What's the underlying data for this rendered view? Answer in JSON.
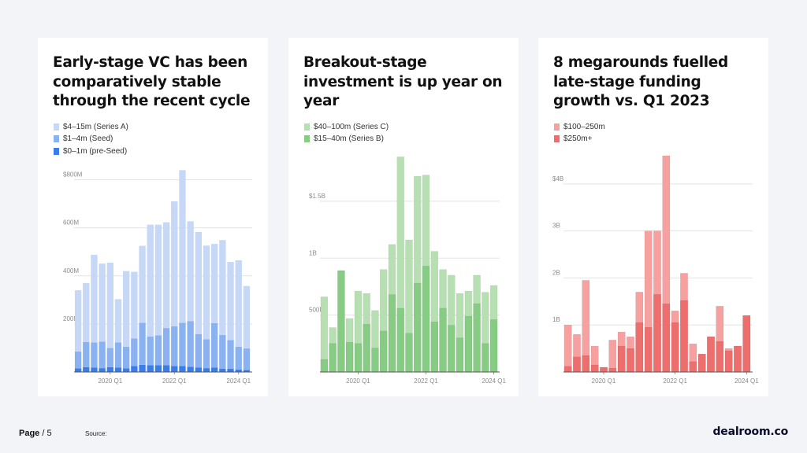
{
  "footer": {
    "page_label": "Page",
    "page_number": "/ 5",
    "source_label": "Source:",
    "logo": "dealroom.co"
  },
  "chart_data": [
    {
      "type": "bar",
      "stacked": true,
      "title": "Early-stage VC has been comparatively stable through the recent cycle",
      "x_tick_labels": [
        "2020 Q1",
        "2022 Q1",
        "2024 Q1"
      ],
      "x_tick_indices": [
        4,
        12,
        20
      ],
      "y_ticks": [
        200,
        400,
        600,
        800
      ],
      "y_tick_labels": [
        "200M",
        "400M",
        "600M",
        "$800M"
      ],
      "ylim": [
        0,
        900
      ],
      "series": [
        {
          "name": "$0–1m (pre-Seed)",
          "color": "#3b7de8",
          "values": [
            15,
            20,
            18,
            16,
            20,
            18,
            15,
            25,
            30,
            28,
            28,
            28,
            25,
            25,
            22,
            18,
            16,
            18,
            14,
            13,
            10,
            8
          ]
        },
        {
          "name": "$1–4m (Seed)",
          "color": "#8ab2f0",
          "values": [
            70,
            105,
            105,
            110,
            80,
            105,
            90,
            115,
            175,
            120,
            125,
            155,
            165,
            180,
            190,
            140,
            120,
            185,
            140,
            120,
            95,
            90
          ]
        },
        {
          "name": "$4–15m (Series A)",
          "color": "#c6d8f6",
          "values": [
            255,
            245,
            365,
            325,
            355,
            180,
            315,
            277,
            320,
            465,
            460,
            440,
            520,
            635,
            415,
            425,
            390,
            330,
            395,
            325,
            360,
            260
          ]
        }
      ]
    },
    {
      "type": "bar",
      "stacked": false,
      "overlaid": true,
      "title": "Breakout-stage investment is up year on year",
      "x_tick_labels": [
        "2020 Q1",
        "2022 Q1",
        "2024 Q1"
      ],
      "x_tick_indices": [
        4,
        12,
        20
      ],
      "y_ticks": [
        500,
        1000,
        1500
      ],
      "y_tick_labels": [
        "500M",
        "1B",
        "$1.5B"
      ],
      "ylim": [
        0,
        1900
      ],
      "series": [
        {
          "name": "$40–100m (Series C)",
          "color": "#b7e0b2",
          "values": [
            660,
            390,
            890,
            470,
            710,
            690,
            540,
            900,
            1120,
            1890,
            1160,
            1720,
            1730,
            1060,
            900,
            850,
            690,
            710,
            850,
            700,
            760
          ]
        },
        {
          "name": "$15–40m (Series B)",
          "color": "#86cc83",
          "values": [
            110,
            250,
            890,
            260,
            250,
            420,
            210,
            360,
            680,
            560,
            340,
            780,
            930,
            440,
            560,
            410,
            300,
            490,
            600,
            250,
            460
          ]
        }
      ]
    },
    {
      "type": "bar",
      "stacked": false,
      "overlaid": true,
      "title": "8 megarounds fuelled late-stage funding growth vs. Q1 2023",
      "x_tick_labels": [
        "2020 Q1",
        "2022 Q1",
        "2024 Q1"
      ],
      "x_tick_indices": [
        4,
        12,
        20
      ],
      "y_ticks": [
        1,
        2,
        3,
        4
      ],
      "y_tick_labels": [
        "1B",
        "2B",
        "3B",
        "$4B"
      ],
      "ylim": [
        0,
        4.6
      ],
      "series": [
        {
          "name": "$100–250m",
          "color": "#f6a0a0",
          "values": [
            1.0,
            0.8,
            1.95,
            0.55,
            0.1,
            0.68,
            0.85,
            0.75,
            1.7,
            3.0,
            3.0,
            4.6,
            1.3,
            2.1,
            0.6,
            0.38,
            0.75,
            1.4,
            0.5,
            0.55,
            1.2
          ]
        },
        {
          "name": "$250m+",
          "color": "#ee6e6e",
          "values": [
            0.12,
            0.32,
            0.35,
            0.15,
            0.1,
            0.08,
            0.55,
            0.5,
            1.05,
            0.95,
            1.65,
            1.45,
            1.05,
            1.52,
            0.22,
            0.38,
            0.75,
            0.65,
            0.45,
            0.55,
            1.2
          ]
        }
      ]
    }
  ]
}
